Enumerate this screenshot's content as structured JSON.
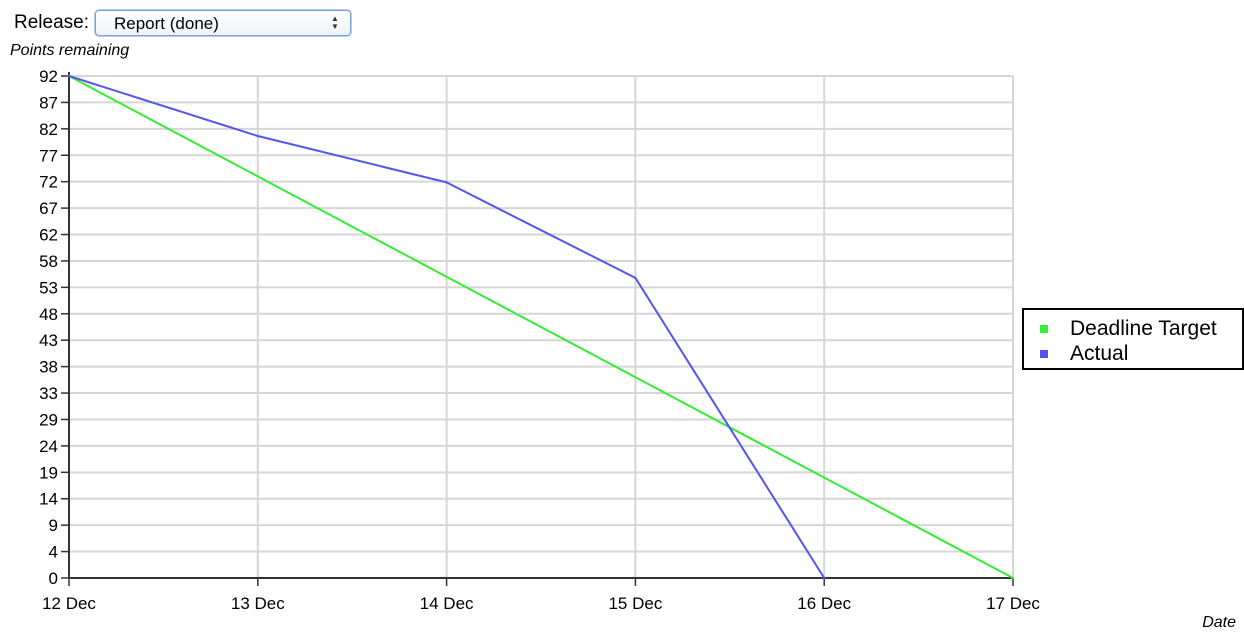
{
  "release": {
    "label": "Release:",
    "selected": "Report (done)"
  },
  "chart_data": {
    "type": "line",
    "ylabel": "Points remaining",
    "xlabel": "Date",
    "x": [
      "12 Dec",
      "13 Dec",
      "14 Dec",
      "15 Dec",
      "16 Dec",
      "17 Dec"
    ],
    "y_ticks": [
      0,
      4,
      9,
      14,
      19,
      24,
      29,
      33,
      38,
      43,
      48,
      53,
      58,
      62,
      67,
      72,
      77,
      82,
      87,
      92
    ],
    "ylim": [
      0,
      92
    ],
    "grid": true,
    "legend_position": "right",
    "series": [
      {
        "name": "Deadline Target",
        "color": "#33ee33",
        "x": [
          "12 Dec",
          "17 Dec"
        ],
        "values": [
          92,
          0
        ]
      },
      {
        "name": "Actual",
        "color": "#5555ee",
        "x": [
          "12 Dec",
          "13 Dec",
          "14 Dec",
          "15 Dec",
          "16 Dec"
        ],
        "values": [
          92,
          81,
          72.5,
          55,
          0
        ]
      }
    ]
  }
}
